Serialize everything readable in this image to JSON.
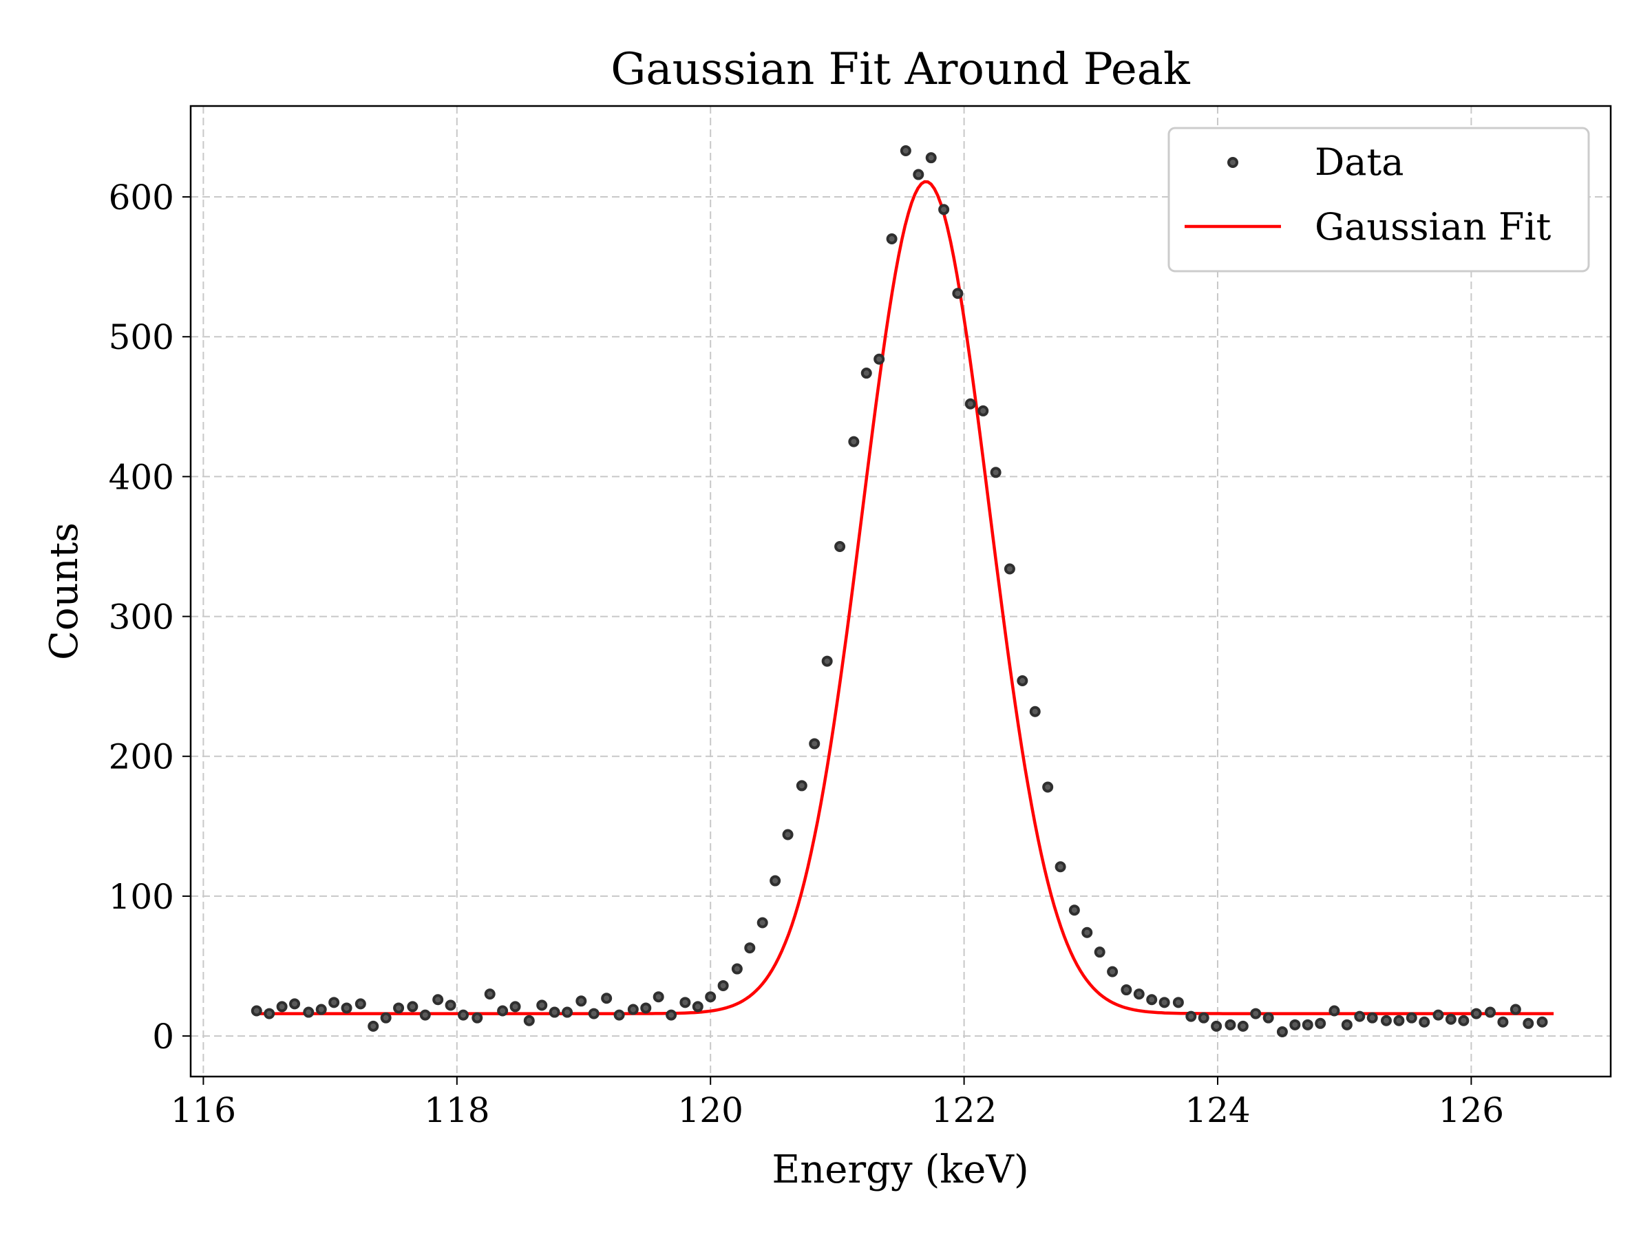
{
  "chart_data": {
    "type": "scatter",
    "title": "Gaussian Fit Around Peak",
    "xlabel": "Energy (keV)",
    "ylabel": "Counts",
    "xlim": [
      115.9,
      127.1
    ],
    "ylim": [
      -29,
      665
    ],
    "xticks": [
      116,
      118,
      120,
      122,
      124,
      126
    ],
    "yticks": [
      0,
      100,
      200,
      300,
      400,
      500,
      600
    ],
    "grid": true,
    "legend_position": "top-right",
    "colors": {
      "data_fill": "#5a5a5a",
      "data_edge": "#2f2f2f",
      "fit": "#ff0000"
    },
    "series": [
      {
        "name": "Data",
        "kind": "scatter",
        "points": [
          [
            116.42,
            18
          ],
          [
            116.52,
            16
          ],
          [
            116.62,
            21
          ],
          [
            116.72,
            23
          ],
          [
            116.83,
            17
          ],
          [
            116.93,
            19
          ],
          [
            117.03,
            24
          ],
          [
            117.13,
            20
          ],
          [
            117.24,
            23
          ],
          [
            117.34,
            7
          ],
          [
            117.44,
            13
          ],
          [
            117.54,
            20
          ],
          [
            117.65,
            21
          ],
          [
            117.75,
            15
          ],
          [
            117.85,
            26
          ],
          [
            117.95,
            22
          ],
          [
            118.05,
            15
          ],
          [
            118.16,
            13
          ],
          [
            118.26,
            30
          ],
          [
            118.36,
            18
          ],
          [
            118.46,
            21
          ],
          [
            118.57,
            11
          ],
          [
            118.67,
            22
          ],
          [
            118.77,
            17
          ],
          [
            118.87,
            17
          ],
          [
            118.98,
            25
          ],
          [
            119.08,
            16
          ],
          [
            119.18,
            27
          ],
          [
            119.28,
            15
          ],
          [
            119.39,
            19
          ],
          [
            119.49,
            20
          ],
          [
            119.59,
            28
          ],
          [
            119.69,
            15
          ],
          [
            119.8,
            24
          ],
          [
            119.9,
            21
          ],
          [
            120.0,
            28
          ],
          [
            120.1,
            36
          ],
          [
            120.21,
            48
          ],
          [
            120.31,
            63
          ],
          [
            120.41,
            81
          ],
          [
            120.51,
            111
          ],
          [
            120.61,
            144
          ],
          [
            120.72,
            179
          ],
          [
            120.82,
            209
          ],
          [
            120.92,
            268
          ],
          [
            121.02,
            350
          ],
          [
            121.13,
            425
          ],
          [
            121.23,
            474
          ],
          [
            121.33,
            484
          ],
          [
            121.43,
            570
          ],
          [
            121.54,
            633
          ],
          [
            121.64,
            616
          ],
          [
            121.74,
            628
          ],
          [
            121.84,
            591
          ],
          [
            121.95,
            531
          ],
          [
            122.05,
            452
          ],
          [
            122.15,
            447
          ],
          [
            122.25,
            403
          ],
          [
            122.36,
            334
          ],
          [
            122.46,
            254
          ],
          [
            122.56,
            232
          ],
          [
            122.66,
            178
          ],
          [
            122.76,
            121
          ],
          [
            122.87,
            90
          ],
          [
            122.97,
            74
          ],
          [
            123.07,
            60
          ],
          [
            123.17,
            46
          ],
          [
            123.28,
            33
          ],
          [
            123.38,
            30
          ],
          [
            123.48,
            26
          ],
          [
            123.58,
            24
          ],
          [
            123.69,
            24
          ],
          [
            123.79,
            14
          ],
          [
            123.89,
            13
          ],
          [
            123.99,
            7
          ],
          [
            124.1,
            8
          ],
          [
            124.2,
            7
          ],
          [
            124.3,
            16
          ],
          [
            124.4,
            13
          ],
          [
            124.51,
            3
          ],
          [
            124.61,
            8
          ],
          [
            124.71,
            8
          ],
          [
            124.81,
            9
          ],
          [
            124.92,
            18
          ],
          [
            125.02,
            8
          ],
          [
            125.12,
            14
          ],
          [
            125.22,
            13
          ],
          [
            125.33,
            11
          ],
          [
            125.43,
            11
          ],
          [
            125.53,
            13
          ],
          [
            125.63,
            10
          ],
          [
            125.74,
            15
          ],
          [
            125.84,
            12
          ],
          [
            125.94,
            11
          ],
          [
            126.04,
            16
          ],
          [
            126.15,
            17
          ],
          [
            126.25,
            10
          ],
          [
            126.35,
            19
          ],
          [
            126.45,
            9
          ],
          [
            126.56,
            10
          ]
        ]
      },
      {
        "name": "Gaussian Fit",
        "kind": "line",
        "model": {
          "amplitude": 595,
          "mean": 121.7,
          "sigma": 0.5,
          "offset": 16
        },
        "x_range": [
          116.42,
          126.65
        ]
      }
    ]
  }
}
